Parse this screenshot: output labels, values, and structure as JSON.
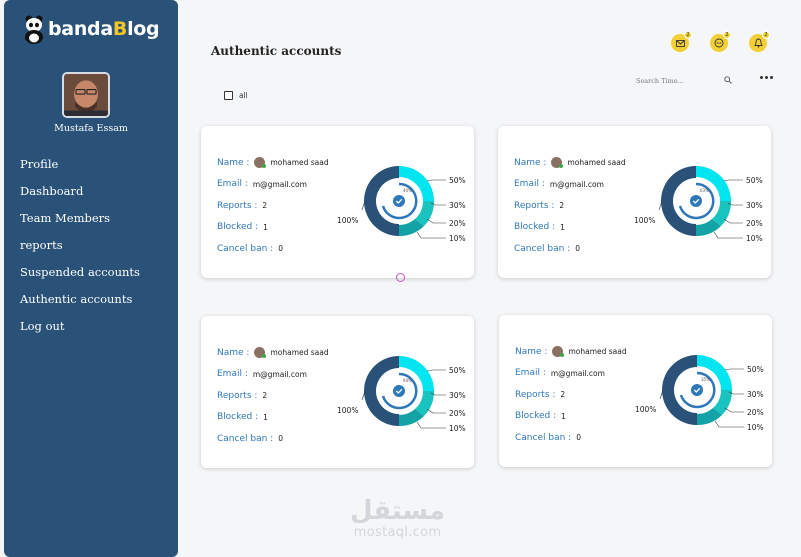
{
  "brand": {
    "name_part1": "banda",
    "name_part2": "B",
    "name_part3": "log"
  },
  "user": {
    "name": "Mustafa Essam"
  },
  "sidebar": {
    "items": [
      {
        "label": "Profile"
      },
      {
        "label": "Dashboard"
      },
      {
        "label": "Team Members"
      },
      {
        "label": "reports"
      },
      {
        "label": "Suspended accounts"
      },
      {
        "label": "Authentic accounts"
      },
      {
        "label": "Log out"
      }
    ]
  },
  "header": {
    "title": "Authentic accounts",
    "search_placeholder": "Search Time...",
    "icons": [
      {
        "icon": "mail-icon",
        "badge": "2"
      },
      {
        "icon": "chat-icon",
        "badge": "2"
      },
      {
        "icon": "bell-icon",
        "badge": "2"
      }
    ]
  },
  "filter": {
    "select_all_label": "all"
  },
  "cards": [
    {
      "name_label": "Name :",
      "name": "mohamed saad",
      "email_label": "Email :",
      "email": "m@gmail.com",
      "reports_label": "Reports :",
      "reports": "2",
      "blocked_label": "Blocked :",
      "blocked": "1",
      "cancel_label": "Cancel ban :",
      "cancel": "0",
      "center_label": "40%",
      "ring_labels": [
        "100%",
        "50%",
        "30%",
        "20%",
        "10%"
      ]
    },
    {
      "name_label": "Name :",
      "name": "mohamed saad",
      "email_label": "Email :",
      "email": "m@gmail.com",
      "reports_label": "Reports :",
      "reports": "2",
      "blocked_label": "Blocked :",
      "blocked": "1",
      "cancel_label": "Cancel ban :",
      "cancel": "0",
      "center_label": "63%",
      "ring_labels": [
        "100%",
        "50%",
        "30%",
        "20%",
        "10%"
      ]
    },
    {
      "name_label": "Name :",
      "name": "mohamed saad",
      "email_label": "Email :",
      "email": "m@gmail.com",
      "reports_label": "Reports :",
      "reports": "2",
      "blocked_label": "Blocked :",
      "blocked": "1",
      "cancel_label": "Cancel ban :",
      "cancel": "0",
      "center_label": "94%",
      "ring_labels": [
        "100%",
        "50%",
        "30%",
        "20%",
        "10%"
      ]
    },
    {
      "name_label": "Name :",
      "name": "mohamed saad",
      "email_label": "Email :",
      "email": "m@gmail.com",
      "reports_label": "Reports :",
      "reports": "2",
      "blocked_label": "Blocked :",
      "blocked": "1",
      "cancel_label": "Cancel ban :",
      "cancel": "0",
      "center_label": "35%",
      "ring_labels": [
        "100%",
        "50%",
        "30%",
        "20%",
        "10%"
      ]
    }
  ],
  "watermark": {
    "arabic": "مستقل",
    "latin": "mostaql.com"
  },
  "colors": {
    "sidebar": "#2a5278",
    "accent": "#f3cf36",
    "link": "#2e78b9",
    "ring_dark": "#2a5278",
    "ring_cyan": "#00e5f0",
    "ring_teal": "#19c3c0"
  }
}
